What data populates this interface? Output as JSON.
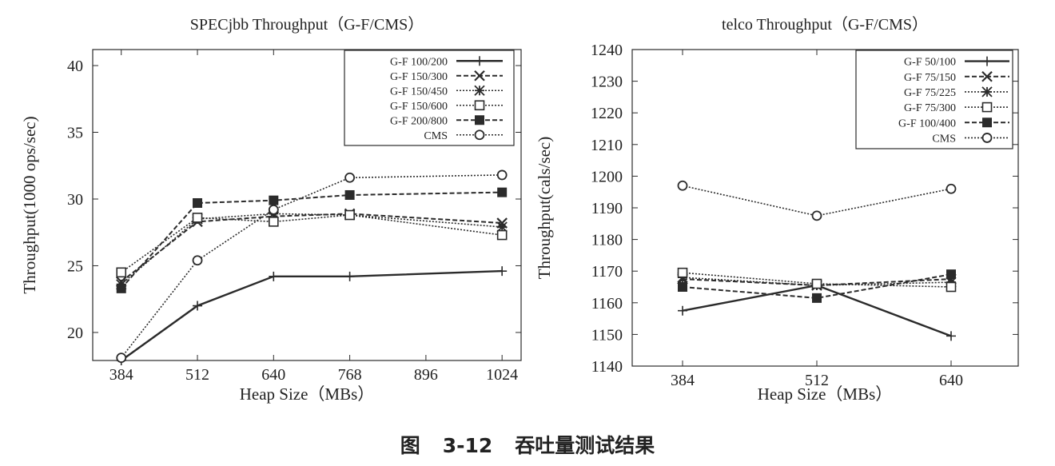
{
  "caption": {
    "figure": "图",
    "number": "3-12",
    "text": "吞吐量测试结果"
  },
  "chart_data": [
    {
      "type": "line",
      "title": "SPECjbb Throughput（G-F/CMS）",
      "xlabel": "Heap Size（MBs）",
      "ylabel": "Throughput(1000 ops/sec)",
      "x_ticks": [
        384,
        512,
        640,
        768,
        896,
        1024
      ],
      "y_ticks": [
        20,
        25,
        30,
        35,
        40
      ],
      "xlim": [
        336,
        1056
      ],
      "ylim": [
        17.9,
        41.2
      ],
      "legend_position": "top-right",
      "grid": false,
      "series": [
        {
          "name": "G-F 100/200",
          "marker": "plus",
          "style": "solid",
          "points": [
            [
              384,
              17.9
            ],
            [
              512,
              22.0
            ],
            [
              640,
              24.2
            ],
            [
              768,
              24.2
            ],
            [
              1024,
              24.6
            ]
          ]
        },
        {
          "name": "G-F 150/300",
          "marker": "x",
          "style": "dashed",
          "points": [
            [
              384,
              23.8
            ],
            [
              512,
              28.3
            ],
            [
              640,
              28.7
            ],
            [
              768,
              28.9
            ],
            [
              1024,
              28.2
            ]
          ]
        },
        {
          "name": "G-F 150/450",
          "marker": "star",
          "style": "dotted",
          "points": [
            [
              384,
              23.6
            ],
            [
              512,
              28.5
            ],
            [
              640,
              28.9
            ],
            [
              768,
              28.8
            ],
            [
              1024,
              27.9
            ]
          ]
        },
        {
          "name": "G-F 150/600",
          "marker": "square-open",
          "style": "dotted",
          "points": [
            [
              384,
              24.5
            ],
            [
              512,
              28.6
            ],
            [
              640,
              28.3
            ],
            [
              768,
              28.8
            ],
            [
              1024,
              27.3
            ]
          ]
        },
        {
          "name": "G-F 200/800",
          "marker": "square-filled",
          "style": "dashed",
          "points": [
            [
              384,
              23.3
            ],
            [
              512,
              29.7
            ],
            [
              640,
              29.9
            ],
            [
              768,
              30.3
            ],
            [
              1024,
              30.5
            ]
          ]
        },
        {
          "name": "CMS",
          "marker": "circle-open",
          "style": "dotted",
          "points": [
            [
              384,
              18.1
            ],
            [
              512,
              25.4
            ],
            [
              640,
              29.2
            ],
            [
              768,
              31.6
            ],
            [
              1024,
              31.8
            ]
          ]
        }
      ]
    },
    {
      "type": "line",
      "title": "telco Throughput（G-F/CMS）",
      "xlabel": "Heap Size（MBs）",
      "ylabel": "Throughput(cals/sec)",
      "x_ticks": [
        384,
        512,
        640
      ],
      "y_ticks": [
        1140,
        1150,
        1160,
        1170,
        1180,
        1190,
        1200,
        1210,
        1220,
        1230,
        1240
      ],
      "xlim": [
        336,
        704
      ],
      "ylim": [
        1140,
        1240
      ],
      "legend_position": "top-right",
      "grid": false,
      "series": [
        {
          "name": "G-F 50/100",
          "marker": "plus",
          "style": "solid",
          "points": [
            [
              384,
              1157.5
            ],
            [
              512,
              1165.5
            ],
            [
              640,
              1149.5
            ]
          ]
        },
        {
          "name": "G-F 75/150",
          "marker": "x",
          "style": "dashed",
          "points": [
            [
              384,
              1167.5
            ],
            [
              512,
              1165.5
            ],
            [
              640,
              1167.5
            ]
          ]
        },
        {
          "name": "G-F 75/225",
          "marker": "star",
          "style": "dotted",
          "points": [
            [
              384,
              1168
            ],
            [
              512,
              1165.5
            ],
            [
              640,
              1166.5
            ]
          ]
        },
        {
          "name": "G-F 75/300",
          "marker": "square-open",
          "style": "dotted",
          "points": [
            [
              384,
              1169.5
            ],
            [
              512,
              1166
            ],
            [
              640,
              1165
            ]
          ]
        },
        {
          "name": "G-F 100/400",
          "marker": "square-filled",
          "style": "dashed",
          "points": [
            [
              384,
              1165
            ],
            [
              512,
              1161.5
            ],
            [
              640,
              1169
            ]
          ]
        },
        {
          "name": "CMS",
          "marker": "circle-open",
          "style": "dotted",
          "points": [
            [
              384,
              1197
            ],
            [
              512,
              1187.5
            ],
            [
              640,
              1196
            ]
          ]
        }
      ]
    }
  ]
}
